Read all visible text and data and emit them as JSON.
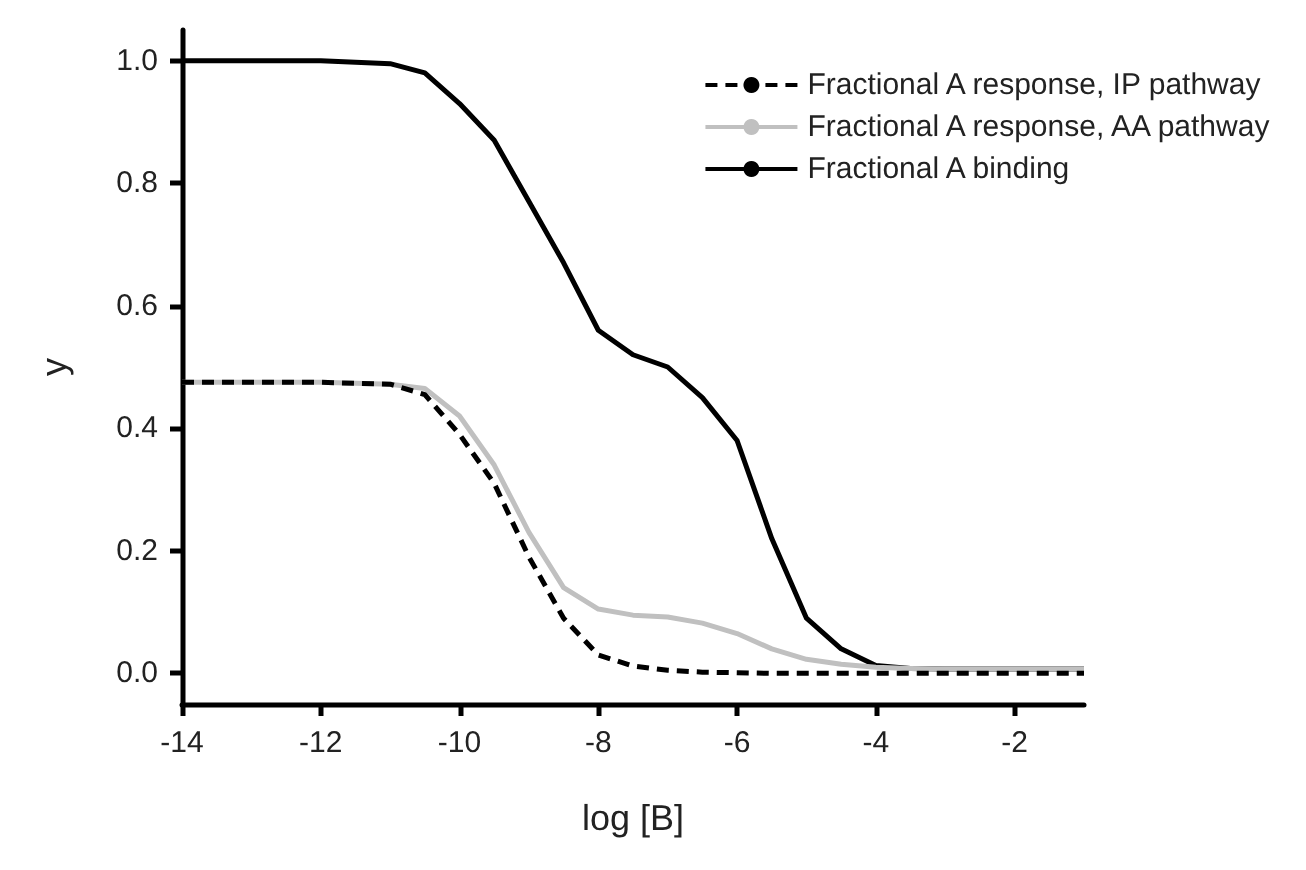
{
  "chart_data": {
    "type": "line",
    "xlabel": "log [B]",
    "ylabel": "y",
    "x": [
      -14,
      -13,
      -12,
      -11,
      -10.5,
      -10,
      -9.5,
      -9,
      -8.5,
      -8,
      -7.5,
      -7,
      -6.5,
      -6,
      -5.5,
      -5,
      -4.5,
      -4,
      -3.5,
      -3,
      -2,
      -1
    ],
    "series": [
      {
        "name": "Fractional A response, IP pathway",
        "color": "#000000",
        "line_style": "dashed",
        "values": [
          0.475,
          0.475,
          0.475,
          0.472,
          0.455,
          0.39,
          0.31,
          0.19,
          0.09,
          0.03,
          0.012,
          0.005,
          0.002,
          0.001,
          0.0,
          0.0,
          0.0,
          0.0,
          0.0,
          0.0,
          0.0,
          0.0
        ]
      },
      {
        "name": "Fractional A response, AA pathway",
        "color": "#c0c0c0",
        "line_style": "solid",
        "values": [
          0.475,
          0.475,
          0.475,
          0.472,
          0.465,
          0.42,
          0.34,
          0.23,
          0.14,
          0.105,
          0.095,
          0.092,
          0.082,
          0.065,
          0.04,
          0.023,
          0.015,
          0.01,
          0.008,
          0.007,
          0.007,
          0.007
        ]
      },
      {
        "name": "Fractional A binding",
        "color": "#000000",
        "line_style": "solid",
        "values": [
          1.0,
          1.0,
          1.0,
          0.995,
          0.98,
          0.93,
          0.87,
          0.77,
          0.67,
          0.56,
          0.52,
          0.5,
          0.45,
          0.38,
          0.22,
          0.09,
          0.04,
          0.013,
          0.008,
          0.007,
          0.007,
          0.007
        ]
      }
    ],
    "xlim": [
      -14,
      -1
    ],
    "xticks": [
      -14,
      -12,
      -10,
      -8,
      -6,
      -4,
      -2
    ],
    "ylim": [
      -0.05,
      1.05
    ],
    "yticks": [
      {
        "value": 0,
        "label": "0.0"
      },
      {
        "value": 0.2,
        "label": "0.2"
      },
      {
        "value": 0.4,
        "label": "0.4"
      },
      {
        "value": 0.6,
        "label": "0.6"
      },
      {
        "value": 0.8,
        "label": "0.8"
      },
      {
        "value": 1,
        "label": "1.0"
      }
    ],
    "grid": false,
    "legend": "top right",
    "marker": "none"
  }
}
